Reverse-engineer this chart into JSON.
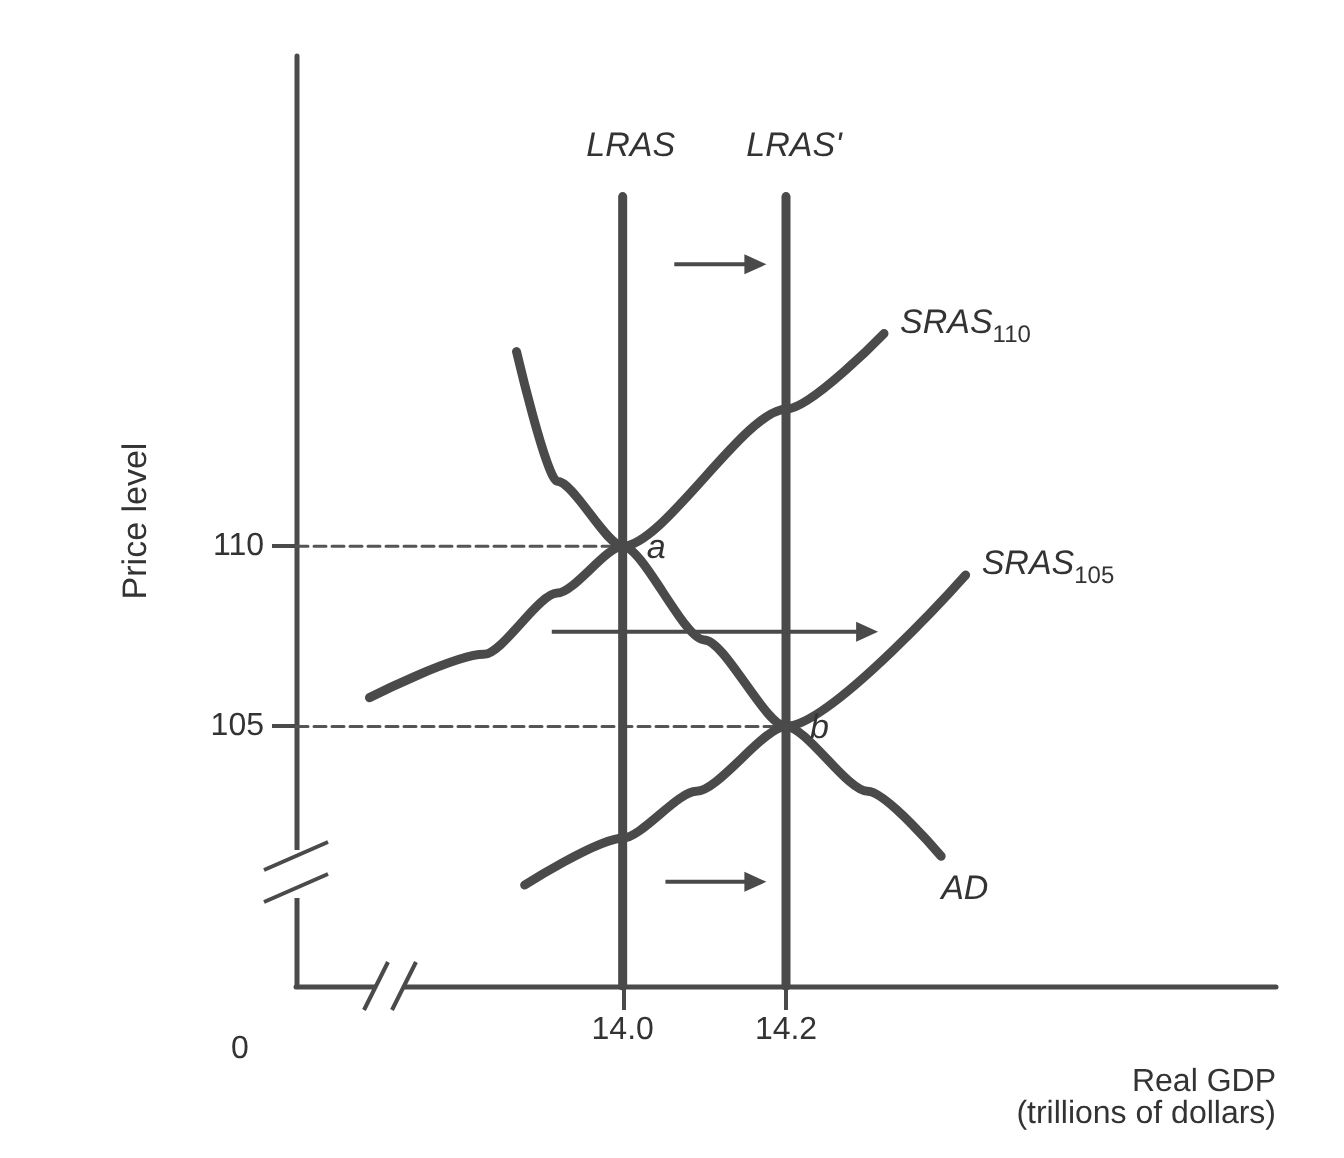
{
  "chart_data": {
    "type": "line",
    "xlabel": "Real GDP\n(trillions of dollars)",
    "ylabel": "Price level",
    "xlim": [
      13.6,
      14.8
    ],
    "ylim": [
      97.8,
      123.6
    ],
    "xticks": [
      {
        "value": 14.0,
        "label": "14.0"
      },
      14.2
    ],
    "yticks": [
      105,
      110
    ],
    "series": [
      {
        "name": "LRAS",
        "color": "#4a4a4a",
        "x": [
          14.0,
          14.0
        ],
        "values": [
          97.8,
          119.7
        ]
      },
      {
        "name": "LRAS'",
        "color": "#4a4a4a",
        "x": [
          14.2,
          14.2
        ],
        "values": [
          97.8,
          119.7
        ]
      },
      {
        "name": "SRAS$_{110}$",
        "color": "#4a4a4a",
        "x": [
          13.69,
          13.83,
          13.92,
          14.0,
          14.2,
          14.32
        ],
        "values": [
          105.8,
          107.0,
          108.7,
          110,
          113.8,
          115.9
        ]
      },
      {
        "name": "SRAS$_{105}$",
        "color": "#4a4a4a",
        "x": [
          13.88,
          14.0,
          14.09,
          14.2,
          14.42
        ],
        "values": [
          100.6,
          101.9,
          103.2,
          105,
          109.2
        ]
      },
      {
        "name": "AD",
        "color": "#4a4a4a",
        "x": [
          13.87,
          13.92,
          14.0,
          14.1,
          14.2,
          14.3,
          14.39
        ],
        "values": [
          115.4,
          111.8,
          110,
          107.4,
          105,
          103.2,
          101.4
        ]
      },
      {
        "color": "#555555",
        "line_style": "dashed",
        "x": [
          13.6,
          14.0
        ],
        "values": [
          110,
          110
        ]
      },
      {
        "color": "#555555",
        "line_style": "dashed",
        "x": [
          13.6,
          14.2
        ],
        "values": [
          105,
          105
        ]
      }
    ],
    "annotations": [
      "0",
      {
        "text": "a",
        "x": 14.0,
        "y": 110
      },
      {
        "text": "b",
        "x": 14.2,
        "y": 105
      }
    ],
    "legend": false,
    "grid": false
  }
}
